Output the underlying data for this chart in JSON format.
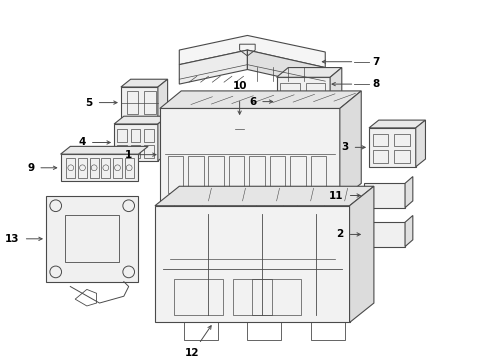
{
  "background_color": "#ffffff",
  "line_color": "#4a4a4a",
  "text_color": "#000000",
  "fig_width": 4.9,
  "fig_height": 3.6,
  "dpi": 100,
  "label_fontsize": 7.5,
  "components": {
    "cover": {
      "label": "7"
    },
    "clip": {
      "label": "8"
    },
    "relay5": {
      "label": "5"
    },
    "relay6": {
      "label": "6"
    },
    "fuse10": {
      "label": "10"
    },
    "relay4": {
      "label": "4"
    },
    "relay3": {
      "label": "3"
    },
    "main1": {
      "label": "1"
    },
    "strip9": {
      "label": "9"
    },
    "small11": {
      "label": "11"
    },
    "small2": {
      "label": "2"
    },
    "bracket13": {
      "label": "13"
    },
    "base12": {
      "label": "12"
    }
  }
}
